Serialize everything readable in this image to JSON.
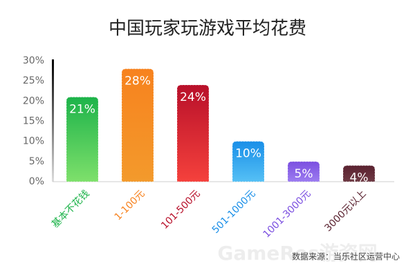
{
  "chart_data": {
    "type": "bar",
    "title": "中国玩家玩游戏平均花费",
    "categories": [
      "基本不花钱",
      "1-100元",
      "101-500元",
      "501-1000元",
      "1001-3000元",
      "3000元以上"
    ],
    "values": [
      21,
      28,
      24,
      10,
      5,
      4
    ],
    "value_labels": [
      "21%",
      "28%",
      "24%",
      "10%",
      "5%",
      "4%"
    ],
    "colors": [
      "#1db34a",
      "#f7821e",
      "#b8102a",
      "#1a8fe8",
      "#7b4fe0",
      "#5a2230"
    ],
    "gradient_colors": [
      "#7ee06b",
      "#f39a2c",
      "#f5413c",
      "#55c0f5",
      "#9c7cf0",
      "#6e3a44"
    ],
    "ylim": [
      0,
      30
    ],
    "yticks": [
      {
        "value": 0,
        "label": "0%"
      },
      {
        "value": 5,
        "label": "5%"
      },
      {
        "value": 10,
        "label": "10%"
      },
      {
        "value": 15,
        "label": "15%"
      },
      {
        "value": 20,
        "label": "20%"
      },
      {
        "value": 25,
        "label": "25%"
      },
      {
        "value": 30,
        "label": "30%"
      }
    ],
    "source": "数据来源：当乐社区运营中心",
    "watermark": "GameRes游资网"
  }
}
